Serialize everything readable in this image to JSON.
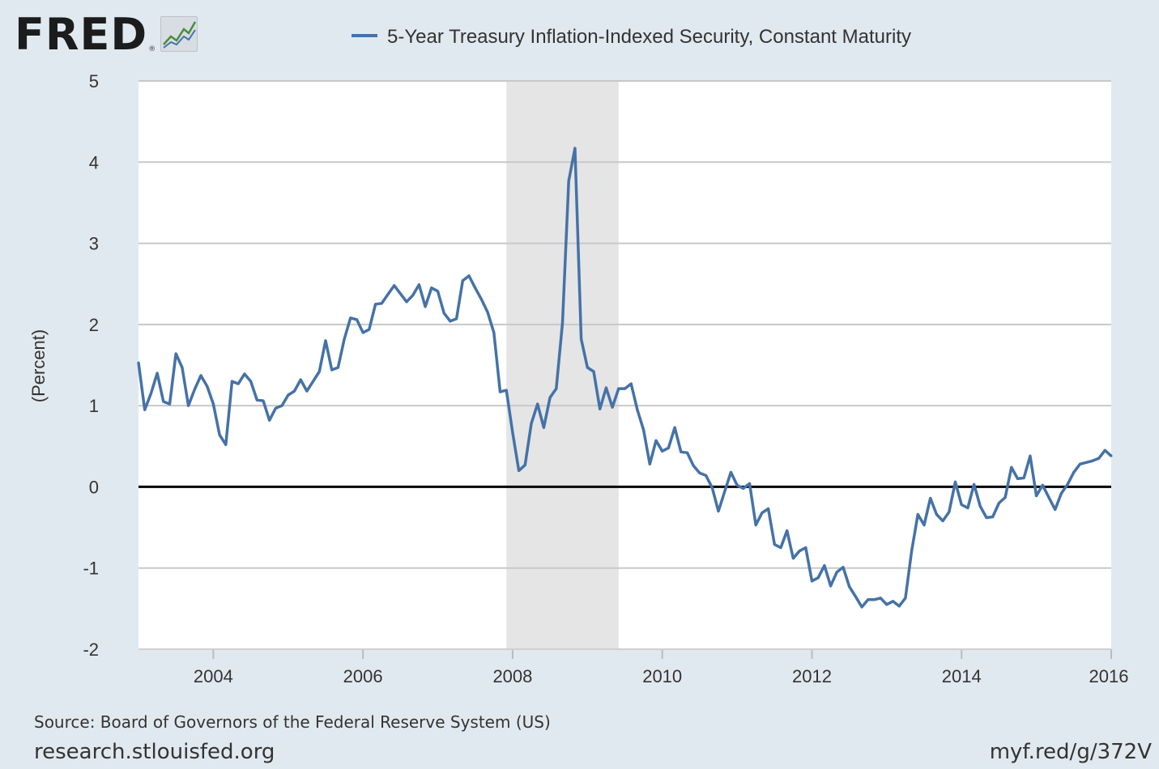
{
  "header": {
    "logo_text": "FRED",
    "logo_reg": "®",
    "legend_label": "5-Year Treasury Inflation-Indexed Security, Constant Maturity",
    "logo_icon": "fred-graph-icon"
  },
  "footer": {
    "source": "Source: Board of Governors of the Federal Reserve System (US)",
    "site": "research.stlouisfed.org",
    "short_url": "myf.red/g/372V"
  },
  "colors": {
    "line": "#4572a7",
    "recession": "#e5e5e5",
    "grid": "#c8c8c8",
    "zero": "#000000",
    "plot_bg": "#ffffff",
    "page_bg": "#e1e9f0"
  },
  "chart_data": {
    "type": "line",
    "title": "",
    "xlabel": "",
    "ylabel": "(Percent)",
    "xlim": [
      2003.0,
      2016.0
    ],
    "ylim": [
      -2,
      5
    ],
    "yticks": [
      -2,
      -1,
      0,
      1,
      2,
      3,
      4,
      5
    ],
    "xticks": [
      2004,
      2006,
      2008,
      2010,
      2012,
      2014,
      2016
    ],
    "grid": true,
    "legend": "top",
    "recessions": [
      [
        2007.917,
        2009.417
      ]
    ],
    "series": [
      {
        "name": "5-Year Treasury Inflation-Indexed Security, Constant Maturity",
        "x": [
          2003.0,
          2003.0833,
          2003.1667,
          2003.25,
          2003.3333,
          2003.4167,
          2003.5,
          2003.5833,
          2003.6667,
          2003.75,
          2003.8333,
          2003.9167,
          2004.0,
          2004.0833,
          2004.1667,
          2004.25,
          2004.3333,
          2004.4167,
          2004.5,
          2004.5833,
          2004.6667,
          2004.75,
          2004.8333,
          2004.9167,
          2005.0,
          2005.0833,
          2005.1667,
          2005.25,
          2005.3333,
          2005.4167,
          2005.5,
          2005.5833,
          2005.6667,
          2005.75,
          2005.8333,
          2005.9167,
          2006.0,
          2006.0833,
          2006.1667,
          2006.25,
          2006.3333,
          2006.4167,
          2006.5,
          2006.5833,
          2006.6667,
          2006.75,
          2006.8333,
          2006.9167,
          2007.0,
          2007.0833,
          2007.1667,
          2007.25,
          2007.3333,
          2007.4167,
          2007.5,
          2007.5833,
          2007.6667,
          2007.75,
          2007.8333,
          2007.9167,
          2008.0,
          2008.0833,
          2008.1667,
          2008.25,
          2008.3333,
          2008.4167,
          2008.5,
          2008.5833,
          2008.6667,
          2008.75,
          2008.8333,
          2008.9167,
          2009.0,
          2009.0833,
          2009.1667,
          2009.25,
          2009.3333,
          2009.4167,
          2009.5,
          2009.5833,
          2009.6667,
          2009.75,
          2009.8333,
          2009.9167,
          2010.0,
          2010.0833,
          2010.1667,
          2010.25,
          2010.3333,
          2010.4167,
          2010.5,
          2010.5833,
          2010.6667,
          2010.75,
          2010.8333,
          2010.9167,
          2011.0,
          2011.0833,
          2011.1667,
          2011.25,
          2011.3333,
          2011.4167,
          2011.5,
          2011.5833,
          2011.6667,
          2011.75,
          2011.8333,
          2011.9167,
          2012.0,
          2012.0833,
          2012.1667,
          2012.25,
          2012.3333,
          2012.4167,
          2012.5,
          2012.5833,
          2012.6667,
          2012.75,
          2012.8333,
          2012.9167,
          2013.0,
          2013.0833,
          2013.1667,
          2013.25,
          2013.3333,
          2013.4167,
          2013.5,
          2013.5833,
          2013.6667,
          2013.75,
          2013.8333,
          2013.9167,
          2014.0,
          2014.0833,
          2014.1667,
          2014.25,
          2014.3333,
          2014.4167,
          2014.5,
          2014.5833,
          2014.6667,
          2014.75,
          2014.8333,
          2014.9167,
          2015.0,
          2015.0833,
          2015.1667,
          2015.25,
          2015.3333,
          2015.4167,
          2015.5,
          2015.5833,
          2015.6667,
          2015.75,
          2015.8333,
          2015.9167,
          2016.0
        ],
        "values": [
          1.53,
          0.95,
          1.15,
          1.4,
          1.05,
          1.02,
          1.64,
          1.47,
          1.0,
          1.2,
          1.37,
          1.24,
          1.02,
          0.64,
          0.52,
          1.3,
          1.27,
          1.39,
          1.3,
          1.07,
          1.06,
          0.82,
          0.97,
          1.0,
          1.13,
          1.18,
          1.32,
          1.18,
          1.3,
          1.42,
          1.8,
          1.44,
          1.47,
          1.82,
          2.08,
          2.06,
          1.9,
          1.94,
          2.25,
          2.26,
          2.37,
          2.48,
          2.38,
          2.28,
          2.36,
          2.49,
          2.22,
          2.45,
          2.41,
          2.14,
          2.04,
          2.07,
          2.54,
          2.6,
          2.45,
          2.31,
          2.15,
          1.9,
          1.17,
          1.19,
          0.67,
          0.2,
          0.27,
          0.78,
          1.02,
          0.73,
          1.1,
          1.21,
          2.02,
          3.77,
          4.17,
          1.82,
          1.47,
          1.42,
          0.96,
          1.22,
          0.98,
          1.21,
          1.21,
          1.27,
          0.95,
          0.7,
          0.28,
          0.57,
          0.44,
          0.48,
          0.73,
          0.43,
          0.42,
          0.26,
          0.17,
          0.14,
          -0.01,
          -0.3,
          -0.06,
          0.18,
          0.02,
          -0.02,
          0.04,
          -0.47,
          -0.32,
          -0.27,
          -0.71,
          -0.75,
          -0.54,
          -0.88,
          -0.79,
          -0.75,
          -1.16,
          -1.12,
          -0.97,
          -1.22,
          -1.05,
          -0.99,
          -1.23,
          -1.35,
          -1.48,
          -1.39,
          -1.39,
          -1.37,
          -1.45,
          -1.41,
          -1.47,
          -1.37,
          -0.79,
          -0.34,
          -0.47,
          -0.14,
          -0.34,
          -0.42,
          -0.31,
          0.06,
          -0.22,
          -0.26,
          0.03,
          -0.24,
          -0.38,
          -0.37,
          -0.2,
          -0.13,
          0.24,
          0.1,
          0.11,
          0.38,
          -0.11,
          0.02,
          -0.13,
          -0.28,
          -0.08,
          0.03,
          0.18,
          0.28,
          0.3,
          0.32,
          0.35,
          0.45,
          0.38
        ]
      }
    ]
  }
}
